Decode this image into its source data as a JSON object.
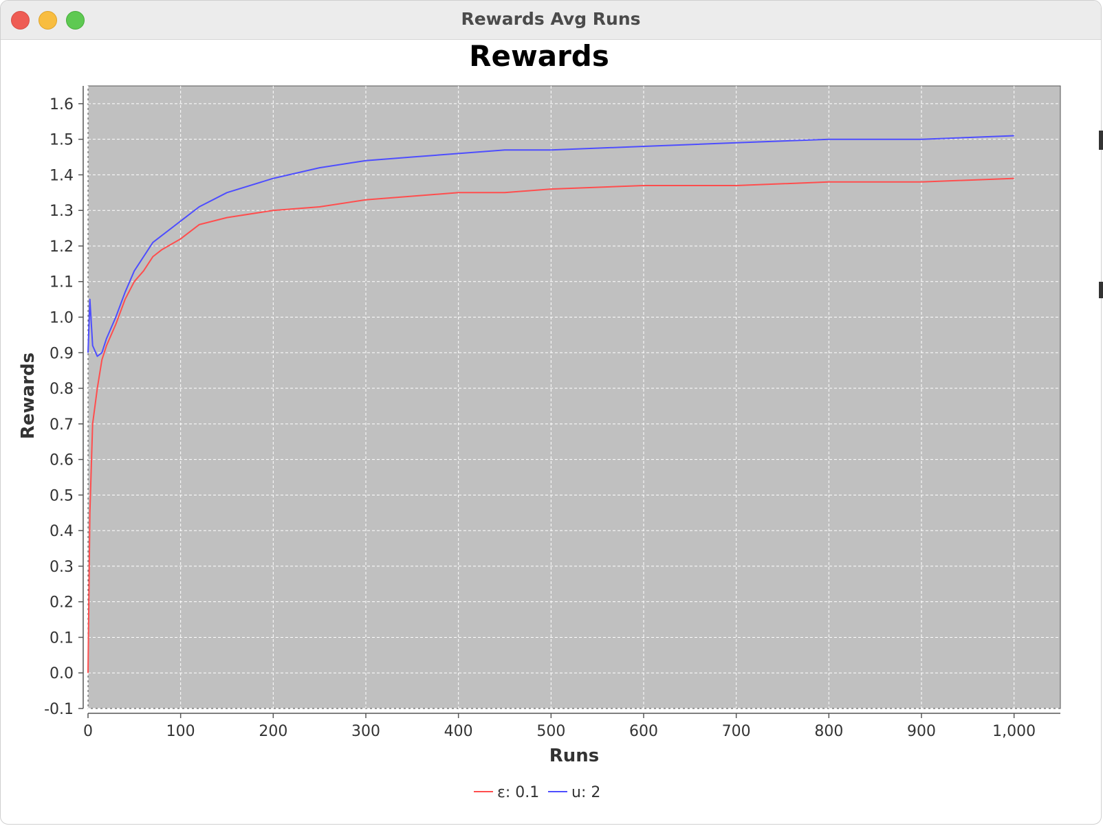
{
  "window": {
    "title": "Rewards Avg Runs"
  },
  "colors": {
    "plot_bg": "#c0c0c0",
    "grid": "#ffffff",
    "series_eps": "#ff4d4d",
    "series_ucb": "#4d4dff"
  },
  "chart_data": {
    "type": "line",
    "title": "Rewards",
    "xlabel": "Runs",
    "ylabel": "Rewards",
    "xlim": [
      0,
      1050
    ],
    "ylim": [
      -0.1,
      1.65
    ],
    "xticks": [
      0,
      100,
      200,
      300,
      400,
      500,
      600,
      700,
      800,
      900,
      1000
    ],
    "xtick_labels": [
      "0",
      "100",
      "200",
      "300",
      "400",
      "500",
      "600",
      "700",
      "800",
      "900",
      "1,000"
    ],
    "yticks": [
      -0.1,
      0.0,
      0.1,
      0.2,
      0.3,
      0.4,
      0.5,
      0.6,
      0.7,
      0.8,
      0.9,
      1.0,
      1.1,
      1.2,
      1.3,
      1.4,
      1.5,
      1.6
    ],
    "ytick_labels": [
      "-0.1",
      "0.0",
      "0.1",
      "0.2",
      "0.3",
      "0.4",
      "0.5",
      "0.6",
      "0.7",
      "0.8",
      "0.9",
      "1.0",
      "1.1",
      "1.2",
      "1.3",
      "1.4",
      "1.5",
      "1.6"
    ],
    "grid": true,
    "legend_position": "bottom-center",
    "series": [
      {
        "name": "ε: 0.1",
        "color": "#ff4d4d",
        "x": [
          0,
          2,
          5,
          10,
          15,
          20,
          30,
          40,
          50,
          60,
          70,
          80,
          100,
          120,
          150,
          200,
          250,
          300,
          350,
          400,
          450,
          500,
          600,
          700,
          800,
          900,
          1000
        ],
        "y": [
          0.0,
          0.45,
          0.7,
          0.8,
          0.88,
          0.92,
          0.98,
          1.05,
          1.1,
          1.13,
          1.17,
          1.19,
          1.22,
          1.26,
          1.28,
          1.3,
          1.31,
          1.33,
          1.34,
          1.35,
          1.35,
          1.36,
          1.37,
          1.37,
          1.38,
          1.38,
          1.39
        ]
      },
      {
        "name": "u: 2",
        "color": "#4d4dff",
        "x": [
          0,
          2,
          5,
          10,
          15,
          20,
          30,
          40,
          50,
          60,
          70,
          80,
          100,
          120,
          150,
          200,
          250,
          300,
          350,
          400,
          450,
          500,
          600,
          700,
          800,
          900,
          1000
        ],
        "y": [
          0.9,
          1.05,
          0.92,
          0.89,
          0.9,
          0.94,
          1.0,
          1.07,
          1.13,
          1.17,
          1.21,
          1.23,
          1.27,
          1.31,
          1.35,
          1.39,
          1.42,
          1.44,
          1.45,
          1.46,
          1.47,
          1.47,
          1.48,
          1.49,
          1.5,
          1.5,
          1.51
        ]
      }
    ]
  }
}
